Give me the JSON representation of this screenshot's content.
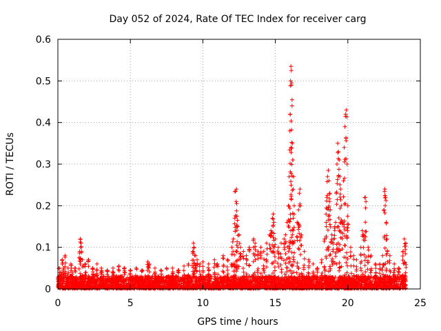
{
  "chart_data": {
    "type": "scatter",
    "title": "Day 052 of 2024, Rate Of TEC Index for receiver carg",
    "xlabel": "GPS time / hours",
    "ylabel": "ROTI / TECUs",
    "xlim": [
      0,
      25
    ],
    "ylim": [
      0,
      0.6
    ],
    "xticks": [
      0,
      5,
      10,
      15,
      20,
      25
    ],
    "yticks": [
      0,
      0.1,
      0.2,
      0.3,
      0.4,
      0.5,
      0.6
    ],
    "grid": true,
    "marker": "+",
    "color": "#ff0000",
    "background_band": {
      "x": [
        0,
        24
      ],
      "y_max": 0.03
    },
    "peak_series": {
      "name": "ROTI",
      "points": [
        [
          0.1,
          0.05
        ],
        [
          0.2,
          0.04
        ],
        [
          0.3,
          0.07
        ],
        [
          0.4,
          0.05
        ],
        [
          0.5,
          0.08
        ],
        [
          0.7,
          0.05
        ],
        [
          0.9,
          0.06
        ],
        [
          1.0,
          0.04
        ],
        [
          1.2,
          0.05
        ],
        [
          1.5,
          0.09
        ],
        [
          1.55,
          0.12
        ],
        [
          1.6,
          0.11
        ],
        [
          1.7,
          0.07
        ],
        [
          1.9,
          0.06
        ],
        [
          2.1,
          0.07
        ],
        [
          2.4,
          0.05
        ],
        [
          2.7,
          0.06
        ],
        [
          3.0,
          0.05
        ],
        [
          3.4,
          0.045
        ],
        [
          3.8,
          0.05
        ],
        [
          4.2,
          0.055
        ],
        [
          4.6,
          0.05
        ],
        [
          5.0,
          0.045
        ],
        [
          5.4,
          0.05
        ],
        [
          5.8,
          0.045
        ],
        [
          6.2,
          0.065
        ],
        [
          6.3,
          0.06
        ],
        [
          6.7,
          0.05
        ],
        [
          7.1,
          0.045
        ],
        [
          7.5,
          0.05
        ],
        [
          7.9,
          0.05
        ],
        [
          8.3,
          0.045
        ],
        [
          8.7,
          0.055
        ],
        [
          9.0,
          0.06
        ],
        [
          9.3,
          0.09
        ],
        [
          9.35,
          0.11
        ],
        [
          9.4,
          0.1
        ],
        [
          9.5,
          0.08
        ],
        [
          9.6,
          0.07
        ],
        [
          9.8,
          0.06
        ],
        [
          10.0,
          0.065
        ],
        [
          10.4,
          0.06
        ],
        [
          10.8,
          0.07
        ],
        [
          11.0,
          0.06
        ],
        [
          11.4,
          0.08
        ],
        [
          11.7,
          0.07
        ],
        [
          12.0,
          0.1
        ],
        [
          12.1,
          0.12
        ],
        [
          12.2,
          0.17
        ],
        [
          12.25,
          0.235
        ],
        [
          12.3,
          0.21
        ],
        [
          12.32,
          0.24
        ],
        [
          12.35,
          0.175
        ],
        [
          12.4,
          0.15
        ],
        [
          12.5,
          0.13
        ],
        [
          12.6,
          0.1
        ],
        [
          12.8,
          0.09
        ],
        [
          13.0,
          0.08
        ],
        [
          13.2,
          0.1
        ],
        [
          13.5,
          0.12
        ],
        [
          13.6,
          0.11
        ],
        [
          13.8,
          0.09
        ],
        [
          14.0,
          0.1
        ],
        [
          14.2,
          0.09
        ],
        [
          14.4,
          0.11
        ],
        [
          14.6,
          0.13
        ],
        [
          14.7,
          0.14
        ],
        [
          14.8,
          0.17
        ],
        [
          14.85,
          0.18
        ],
        [
          14.9,
          0.16
        ],
        [
          15.0,
          0.12
        ],
        [
          15.2,
          0.1
        ],
        [
          15.4,
          0.11
        ],
        [
          15.6,
          0.12
        ],
        [
          15.7,
          0.13
        ],
        [
          15.8,
          0.16
        ],
        [
          15.9,
          0.2
        ],
        [
          15.95,
          0.27
        ],
        [
          16.0,
          0.38
        ],
        [
          16.02,
          0.42
        ],
        [
          16.05,
          0.5
        ],
        [
          16.07,
          0.535
        ],
        [
          16.1,
          0.525
        ],
        [
          16.12,
          0.49
        ],
        [
          16.15,
          0.44
        ],
        [
          16.17,
          0.35
        ],
        [
          16.2,
          0.31
        ],
        [
          16.25,
          0.27
        ],
        [
          16.3,
          0.2
        ],
        [
          16.5,
          0.16
        ],
        [
          16.6,
          0.19
        ],
        [
          16.65,
          0.23
        ],
        [
          16.7,
          0.24
        ],
        [
          16.8,
          0.13
        ],
        [
          17.0,
          0.09
        ],
        [
          17.3,
          0.07
        ],
        [
          17.6,
          0.06
        ],
        [
          17.9,
          0.05
        ],
        [
          18.2,
          0.07
        ],
        [
          18.4,
          0.12
        ],
        [
          18.5,
          0.18
        ],
        [
          18.55,
          0.22
        ],
        [
          18.6,
          0.27
        ],
        [
          18.65,
          0.285
        ],
        [
          18.7,
          0.26
        ],
        [
          18.75,
          0.23
        ],
        [
          18.8,
          0.19
        ],
        [
          18.9,
          0.13
        ],
        [
          19.0,
          0.12
        ],
        [
          19.1,
          0.15
        ],
        [
          19.2,
          0.23
        ],
        [
          19.25,
          0.3
        ],
        [
          19.3,
          0.35
        ],
        [
          19.35,
          0.33
        ],
        [
          19.4,
          0.31
        ],
        [
          19.45,
          0.27
        ],
        [
          19.5,
          0.24
        ],
        [
          19.55,
          0.2
        ],
        [
          19.6,
          0.16
        ],
        [
          19.7,
          0.26
        ],
        [
          19.75,
          0.34
        ],
        [
          19.8,
          0.39
        ],
        [
          19.85,
          0.42
        ],
        [
          19.9,
          0.43
        ],
        [
          19.95,
          0.3
        ],
        [
          20.0,
          0.2
        ],
        [
          20.2,
          0.1
        ],
        [
          20.4,
          0.08
        ],
        [
          20.6,
          0.07
        ],
        [
          20.9,
          0.1
        ],
        [
          21.0,
          0.14
        ],
        [
          21.1,
          0.13
        ],
        [
          21.2,
          0.22
        ],
        [
          21.25,
          0.21
        ],
        [
          21.4,
          0.1
        ],
        [
          21.6,
          0.08
        ],
        [
          21.9,
          0.06
        ],
        [
          22.2,
          0.06
        ],
        [
          22.4,
          0.08
        ],
        [
          22.5,
          0.19
        ],
        [
          22.55,
          0.24
        ],
        [
          22.6,
          0.22
        ],
        [
          22.65,
          0.16
        ],
        [
          22.7,
          0.12
        ],
        [
          22.9,
          0.08
        ],
        [
          23.2,
          0.06
        ],
        [
          23.5,
          0.05
        ],
        [
          23.8,
          0.09
        ],
        [
          23.9,
          0.12
        ],
        [
          24.0,
          0.11
        ]
      ]
    }
  }
}
